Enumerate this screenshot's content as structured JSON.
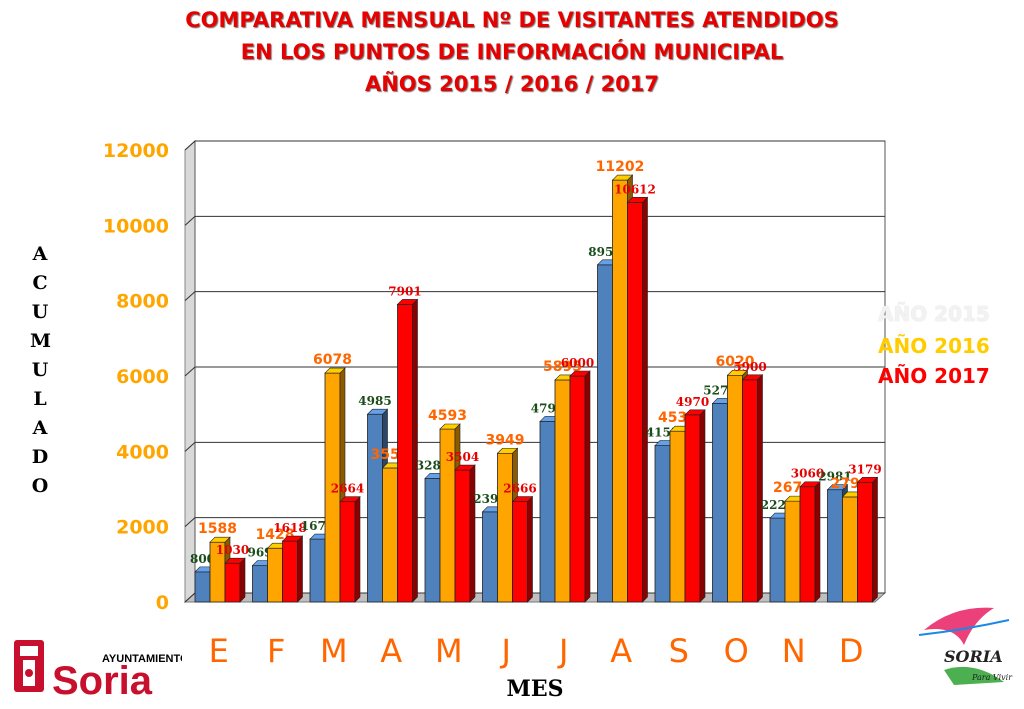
{
  "title": {
    "line1": "COMPARATIVA MENSUAL Nº DE VISITANTES ATENDIDOS",
    "line2": "EN LOS PUNTOS DE INFORMACIÓN MUNICIPAL",
    "line3": "AÑOS 2015 / 2016 / 2017"
  },
  "colors": {
    "title": "#e60000",
    "s2015": "#4f81bd",
    "s2016": "#ffa500",
    "s2017": "#ff0000",
    "ytick": "#ffa500",
    "month": "#ff6600"
  },
  "logos": {
    "left_top": "AYUNTAMIENTO",
    "left_main": "Soria",
    "right_main": "SORIA",
    "right_sub": "Para Vivir"
  },
  "chart_data": {
    "type": "bar",
    "title": "COMPARATIVA MENSUAL Nº DE VISITANTES ATENDIDOS EN LOS PUNTOS DE INFORMACIÓN MUNICIPAL AÑOS 2015 / 2016 / 2017",
    "xlabel": "MES",
    "ylabel": "ACUMULADO",
    "ylabel_letters": [
      "A",
      "C",
      "U",
      "M",
      "U",
      "L",
      "A",
      "D",
      "O"
    ],
    "categories": [
      "E",
      "F",
      "M",
      "A",
      "M",
      "J",
      "J",
      "A",
      "S",
      "O",
      "N",
      "D"
    ],
    "ylim": [
      0,
      12000
    ],
    "yticks": [
      0,
      2000,
      4000,
      6000,
      8000,
      10000,
      12000
    ],
    "grid": true,
    "legend_position": "right",
    "series": [
      {
        "name": "AÑO 2015",
        "values": [
          800,
          969,
          1671,
          4985,
          3280,
          2394,
          4793,
          8951,
          4153,
          5272,
          2228,
          2981
        ]
      },
      {
        "name": "AÑO 2016",
        "values": [
          1588,
          1428,
          6078,
          3558,
          4593,
          3949,
          5895,
          11202,
          4535,
          6020,
          2678,
          2790
        ]
      },
      {
        "name": "AÑO 2017",
        "values": [
          1030,
          1618,
          2664,
          7901,
          3504,
          2666,
          6000,
          10612,
          4970,
          5900,
          3060,
          3179
        ]
      }
    ]
  }
}
